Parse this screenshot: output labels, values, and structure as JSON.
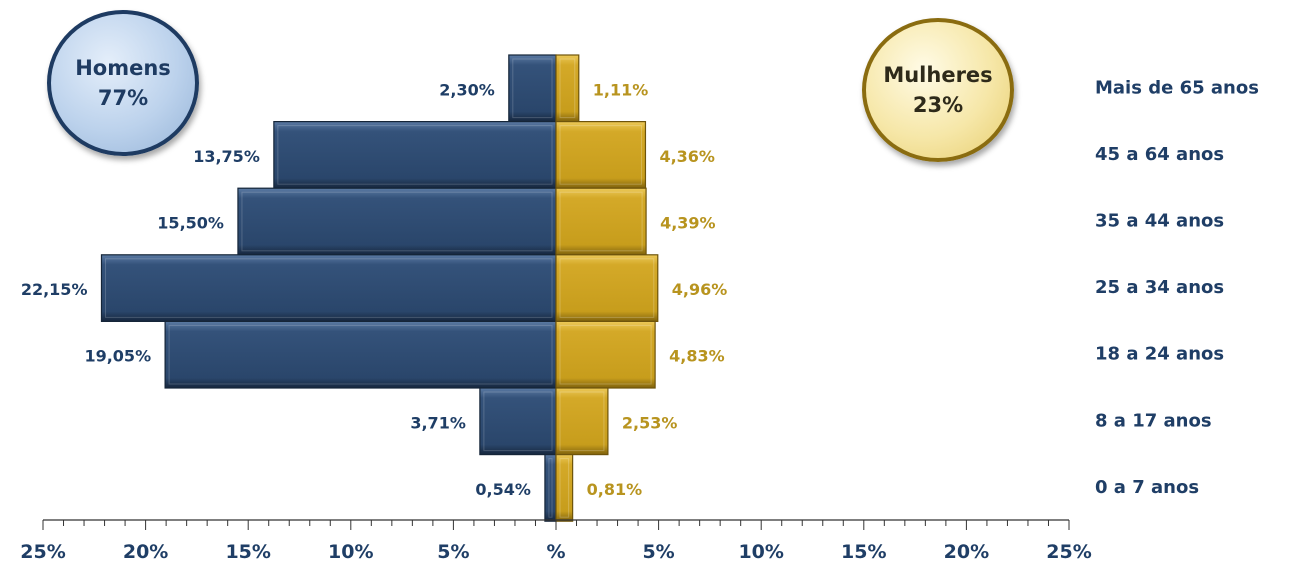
{
  "badges": {
    "men": {
      "label": "Homens",
      "value": "77%"
    },
    "women": {
      "label": "Mulheres",
      "value": "23%"
    }
  },
  "colors": {
    "men": "#2d4a6f",
    "men_text": "#1f3e66",
    "women": "#cea321",
    "women_text": "#b8941f",
    "category_text": "#1f3e66"
  },
  "chart_data": {
    "type": "bar",
    "orientation": "horizontal-population-pyramid",
    "categories": [
      "Mais de 65 anos",
      "45 a 64 anos",
      "35 a 44 anos",
      "25 a 34 anos",
      "18 a 24 anos",
      "8 a 17 anos",
      "0 a 7 anos"
    ],
    "series": [
      {
        "name": "Homens",
        "side": "left",
        "values": [
          2.3,
          13.75,
          15.5,
          22.15,
          19.05,
          3.71,
          0.54
        ],
        "labels": [
          "2,30%",
          "13,75%",
          "15,50%",
          "22,15%",
          "19,05%",
          "3,71%",
          "0,54%"
        ]
      },
      {
        "name": "Mulheres",
        "side": "right",
        "values": [
          1.11,
          4.36,
          4.39,
          4.96,
          4.83,
          2.53,
          0.81
        ],
        "labels": [
          "1,11%",
          "4,36%",
          "4,39%",
          "4,96%",
          "4,83%",
          "2,53%",
          "0,81%"
        ]
      }
    ],
    "xlim": [
      -25,
      25
    ],
    "xticks": [
      {
        "value": -25,
        "label": "25%"
      },
      {
        "value": -20,
        "label": "20%"
      },
      {
        "value": -15,
        "label": "15%"
      },
      {
        "value": -10,
        "label": "10%"
      },
      {
        "value": -5,
        "label": "5%"
      },
      {
        "value": 0,
        "label": "%"
      },
      {
        "value": 5,
        "label": "5%"
      },
      {
        "value": 10,
        "label": "10%"
      },
      {
        "value": 15,
        "label": "15%"
      },
      {
        "value": 20,
        "label": "20%"
      },
      {
        "value": 25,
        "label": "25%"
      }
    ],
    "minor_tick_step": 1,
    "grid": false,
    "legend": "top badges"
  }
}
